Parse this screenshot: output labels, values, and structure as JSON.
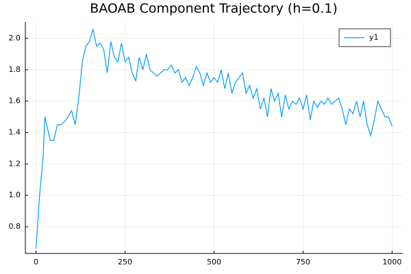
{
  "chart_data": {
    "type": "line",
    "title": "BAOAB Component Trajectory (h=0.1)",
    "x": [
      0,
      10,
      20,
      25,
      30,
      40,
      50,
      60,
      70,
      80,
      90,
      100,
      110,
      120,
      130,
      140,
      150,
      160,
      170,
      180,
      190,
      200,
      210,
      220,
      230,
      240,
      250,
      260,
      270,
      280,
      290,
      300,
      310,
      320,
      330,
      340,
      350,
      360,
      370,
      380,
      390,
      400,
      410,
      420,
      430,
      440,
      450,
      460,
      470,
      480,
      490,
      500,
      510,
      520,
      530,
      540,
      550,
      560,
      570,
      580,
      590,
      600,
      610,
      620,
      630,
      640,
      650,
      660,
      670,
      680,
      690,
      700,
      710,
      720,
      730,
      740,
      750,
      760,
      770,
      780,
      790,
      800,
      810,
      820,
      830,
      840,
      850,
      860,
      870,
      880,
      890,
      900,
      910,
      920,
      930,
      940,
      950,
      960,
      970,
      980,
      990,
      1000
    ],
    "series": [
      {
        "name": "y1",
        "color": "#009af9",
        "values": [
          0.66,
          1.0,
          1.25,
          1.5,
          1.45,
          1.35,
          1.35,
          1.45,
          1.45,
          1.47,
          1.5,
          1.54,
          1.45,
          1.62,
          1.85,
          1.95,
          1.98,
          2.06,
          1.95,
          1.97,
          1.93,
          1.78,
          1.98,
          1.88,
          1.85,
          1.97,
          1.85,
          1.88,
          1.78,
          1.73,
          1.88,
          1.8,
          1.9,
          1.8,
          1.78,
          1.76,
          1.78,
          1.8,
          1.8,
          1.83,
          1.78,
          1.8,
          1.72,
          1.75,
          1.7,
          1.75,
          1.82,
          1.78,
          1.7,
          1.78,
          1.72,
          1.75,
          1.72,
          1.8,
          1.68,
          1.78,
          1.65,
          1.72,
          1.75,
          1.78,
          1.65,
          1.7,
          1.62,
          1.68,
          1.55,
          1.62,
          1.5,
          1.68,
          1.6,
          1.65,
          1.5,
          1.64,
          1.55,
          1.6,
          1.58,
          1.62,
          1.55,
          1.64,
          1.48,
          1.6,
          1.56,
          1.6,
          1.58,
          1.62,
          1.58,
          1.6,
          1.62,
          1.55,
          1.45,
          1.55,
          1.52,
          1.6,
          1.5,
          1.6,
          1.45,
          1.38,
          1.48,
          1.6,
          1.55,
          1.5,
          1.5,
          1.44
        ]
      }
    ],
    "xlim": [
      -30,
      1030
    ],
    "xticks": [
      0,
      250,
      500,
      750,
      1000
    ],
    "ylim": [
      0.63,
      2.105
    ],
    "yticks": [
      0.8,
      {
        "value": 1.0,
        "label": "1.0"
      },
      1.2,
      1.4,
      1.6,
      1.8,
      {
        "value": 2.0,
        "label": "2.0"
      }
    ],
    "grid": true,
    "legend": "top-right"
  }
}
